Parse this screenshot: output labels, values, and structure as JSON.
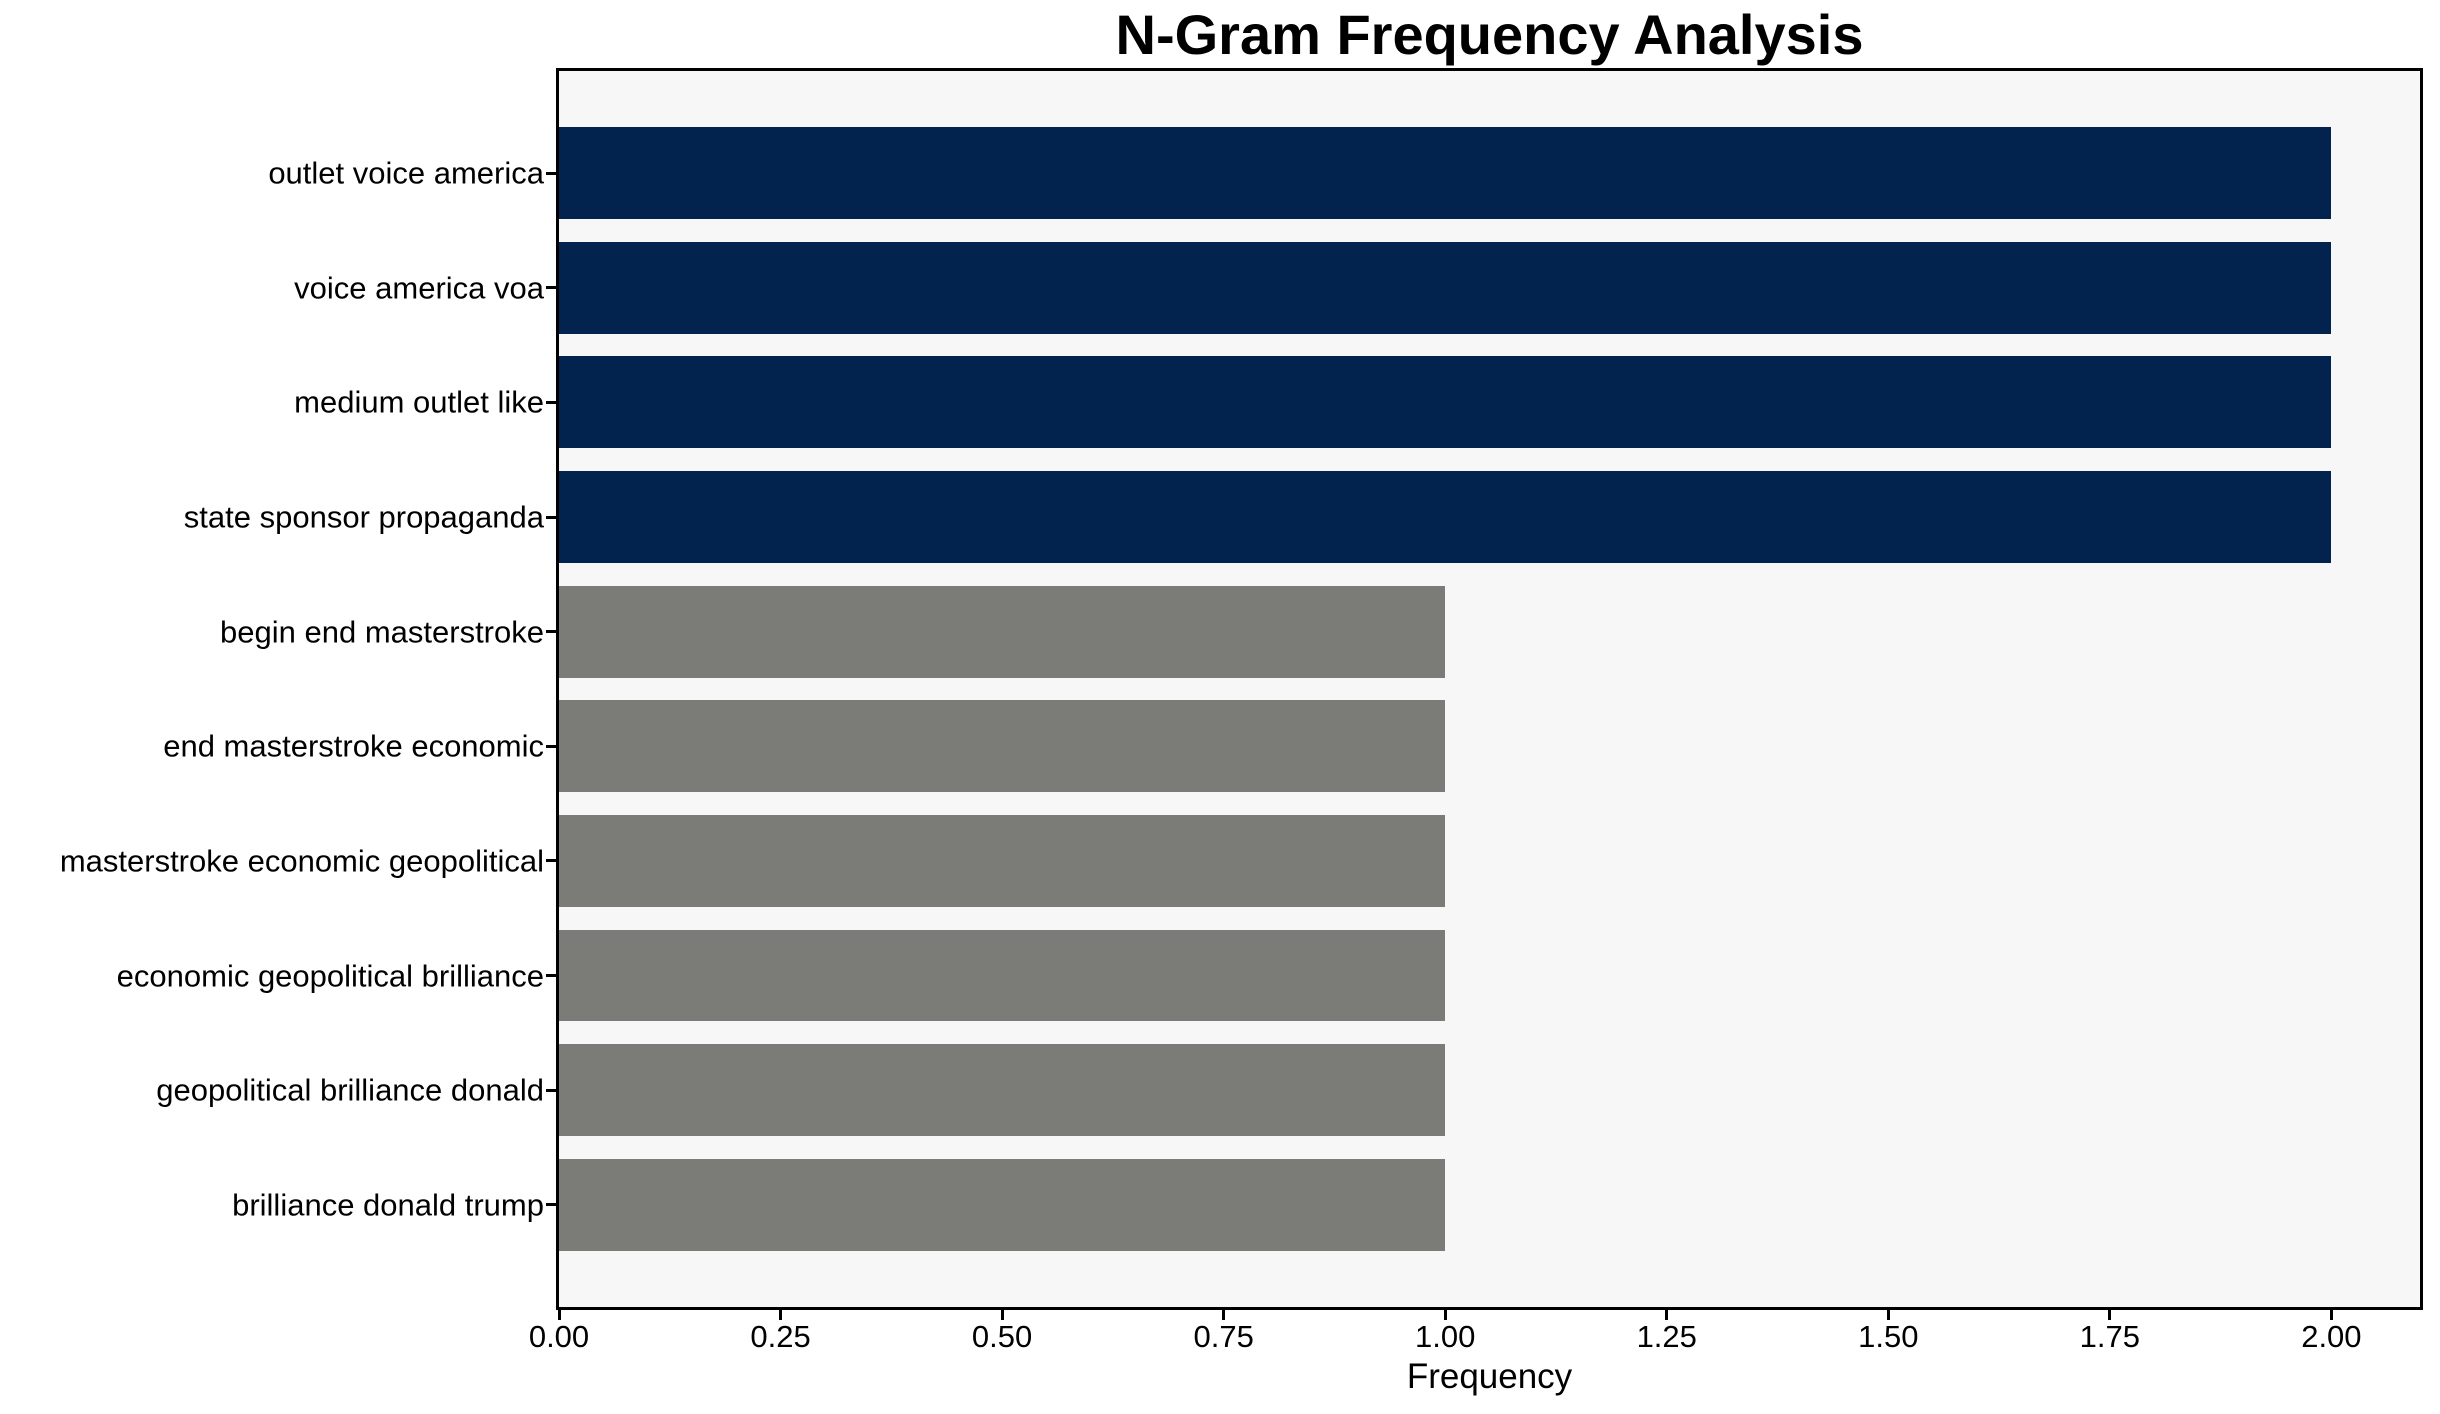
{
  "chart_data": {
    "type": "bar",
    "orientation": "horizontal",
    "title": "N-Gram Frequency Analysis",
    "xlabel": "Frequency",
    "ylabel": "",
    "categories": [
      "outlet voice america",
      "voice america voa",
      "medium outlet like",
      "state sponsor propaganda",
      "begin end masterstroke",
      "end masterstroke economic",
      "masterstroke economic geopolitical",
      "economic geopolitical brilliance",
      "geopolitical brilliance donald",
      "brilliance donald trump"
    ],
    "values": [
      2,
      2,
      2,
      2,
      1,
      1,
      1,
      1,
      1,
      1
    ],
    "bar_colors": [
      "#02234e",
      "#02234e",
      "#02234e",
      "#02234e",
      "#7b7b78",
      "#7b7b78",
      "#7b7b78",
      "#7b7b78",
      "#7b7b78",
      "#7b7b78"
    ],
    "xlim": [
      0,
      2.1
    ],
    "xticks": [
      0,
      0.25,
      0.5,
      0.75,
      1.0,
      1.25,
      1.5,
      1.75,
      2.0
    ],
    "xtick_labels": [
      "0.00",
      "0.25",
      "0.50",
      "0.75",
      "1.00",
      "1.25",
      "1.50",
      "1.75",
      "2.00"
    ],
    "bar_height_frac": 0.8,
    "category_pad_units": 0.49,
    "grid": false,
    "legend": false,
    "plot_background": "#f7f7f7",
    "figure_background": "#ffffff",
    "spine_color": "#000000",
    "text_color": "#000000"
  }
}
